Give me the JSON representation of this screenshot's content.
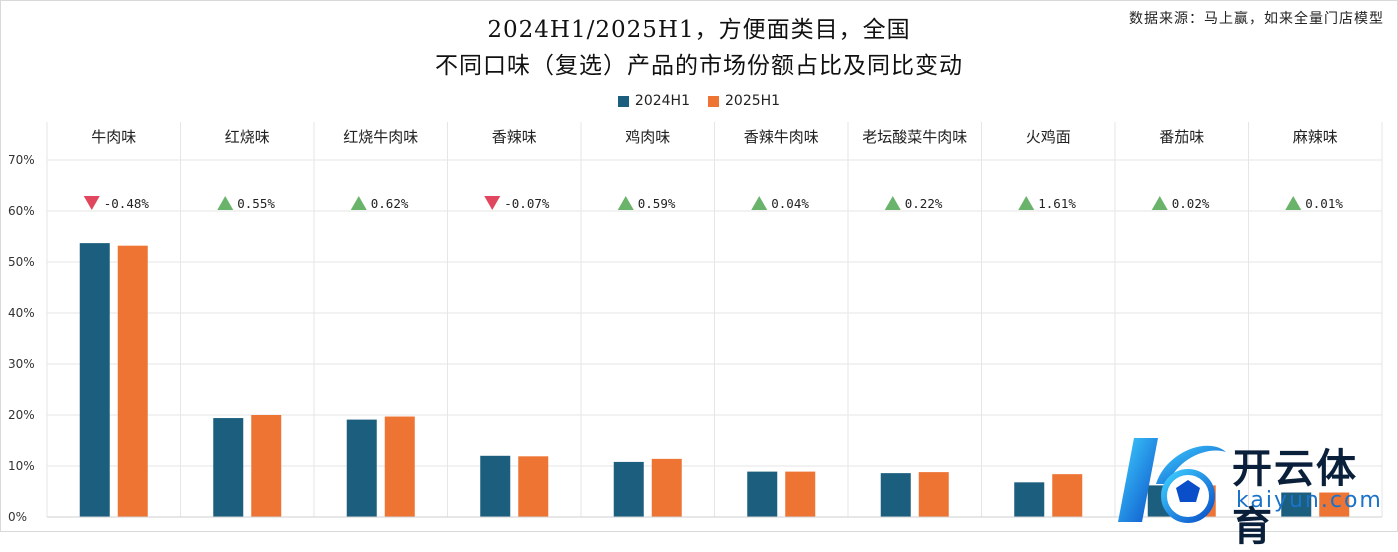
{
  "header": {
    "title_line1": "2024H1/2025H1，方便面类目，全国",
    "title_line2": "不同口味（复选）产品的市场份额占比及同比变动",
    "source": "数据来源：马上赢，如来全量门店模型"
  },
  "colors": {
    "series_2024": "#1b5e7e",
    "series_2025": "#ee7434",
    "delta_up": "#6ab36a",
    "delta_down": "#e0475e",
    "grid": "#e6e6e6"
  },
  "watermark": {
    "name_cn": "开云体育",
    "name_en": "kaiyun.com",
    "icon": "kaiyun-logo-icon"
  },
  "chart_data": {
    "type": "bar",
    "legend_position": "top",
    "grid": true,
    "ylim": [
      0,
      70
    ],
    "yticks": [
      "0%",
      "10%",
      "20%",
      "30%",
      "40%",
      "50%",
      "60%",
      "70%"
    ],
    "ytick_values": [
      0,
      10,
      20,
      30,
      40,
      50,
      60,
      70
    ],
    "categories": [
      "牛肉味",
      "红烧味",
      "红烧牛肉味",
      "香辣味",
      "鸡肉味",
      "香辣牛肉味",
      "老坛酸菜牛肉味",
      "火鸡面",
      "番茄味",
      "麻辣味"
    ],
    "series": [
      {
        "name": "2024H1",
        "values": [
          53.7,
          19.4,
          19.1,
          12.0,
          10.8,
          8.9,
          8.6,
          6.8,
          6.2,
          4.8
        ]
      },
      {
        "name": "2025H1",
        "values": [
          53.2,
          20.0,
          19.7,
          11.9,
          11.4,
          8.9,
          8.8,
          8.4,
          6.2,
          4.8
        ]
      }
    ],
    "yoy_change": {
      "labels": [
        "-0.48%",
        "0.55%",
        "0.62%",
        "-0.07%",
        "0.59%",
        "0.04%",
        "0.22%",
        "1.61%",
        "0.02%",
        "0.01%"
      ],
      "direction": [
        "down",
        "up",
        "up",
        "down",
        "up",
        "up",
        "up",
        "up",
        "up",
        "up"
      ]
    }
  }
}
